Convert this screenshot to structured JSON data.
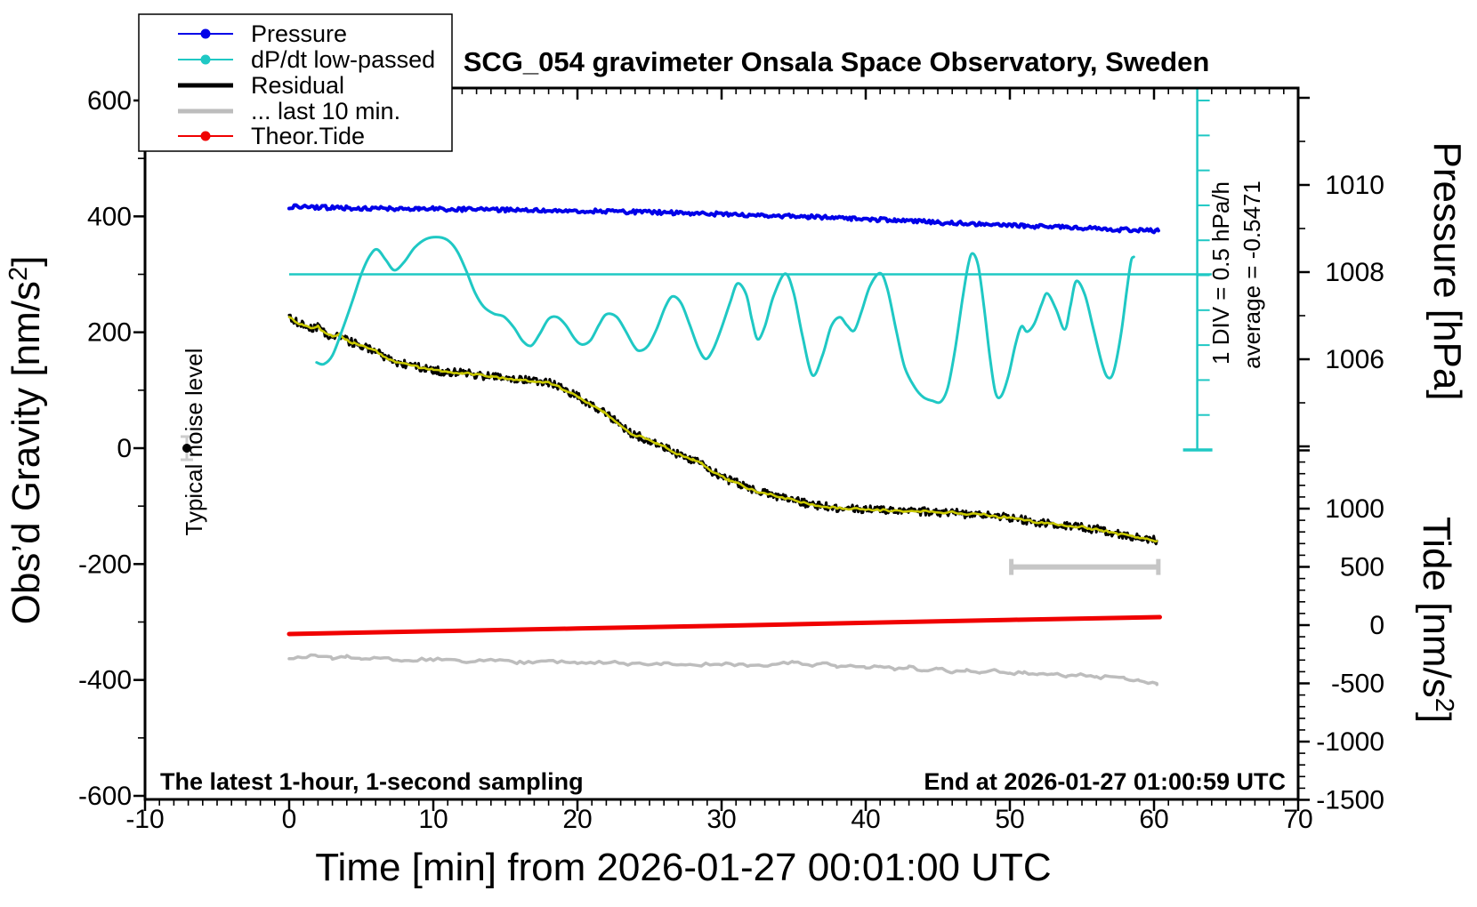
{
  "title": "SCG_054 gravimeter Onsala Space Observatory, Sweden",
  "annotations": {
    "bottom_left": "The latest 1-hour, 1-second sampling",
    "bottom_right": "End at 2026-01-27 01:00:59 UTC",
    "noise_label": "Typical noise level",
    "div_scale_label": "1 DIV = 0.5 hPa/h",
    "average_label": "average = -0.5471"
  },
  "colors": {
    "pressure": "#0000e8",
    "dpdt": "#1fc8c4",
    "residual_raw": "#000000",
    "residual": "#c9c900",
    "last10": "#bdbdbd",
    "tide": "#f00000",
    "marker_gray": "#c6c6c6",
    "frame": "#000000"
  },
  "legend": {
    "items": [
      {
        "label": "Pressure",
        "style": "line-dot",
        "color_key": "pressure"
      },
      {
        "label": "dP/dt low-passed",
        "style": "line-dot",
        "color_key": "dpdt"
      },
      {
        "label": "Residual",
        "style": "thick",
        "color_key": "residual_raw"
      },
      {
        "label": "... last 10 min.",
        "style": "thick",
        "color_key": "last10"
      },
      {
        "label": "Theor.Tide",
        "style": "line-dot",
        "color_key": "tide"
      }
    ]
  },
  "axes": {
    "x": {
      "title": "Time [min] from 2026-01-27 00:01:00 UTC",
      "min": -10,
      "max": 70,
      "major_step": 10,
      "minor_step": 1,
      "labels": [
        -10,
        0,
        10,
        20,
        30,
        40,
        50,
        60,
        70
      ]
    },
    "gravity": {
      "title_pre": "Obs’d Gravity [nm/s",
      "title_sup": "2",
      "title_post": "]",
      "min": -600,
      "max": 600,
      "major_step": 200,
      "minor_step": 100,
      "labels": [
        -600,
        -400,
        -200,
        0,
        200,
        400,
        600
      ]
    },
    "pressure": {
      "title": "Pressure [hPa]",
      "tick_min": 1004,
      "tick_max": 1012,
      "minor_step": 1,
      "major_every": 2,
      "labels": [
        1006,
        1008,
        1010
      ]
    },
    "tide": {
      "title_pre": "Tide [nm/s",
      "title_sup": "2",
      "title_post": "]",
      "tick_min": -1500,
      "tick_max": 1500,
      "minor_step": 100,
      "major_every": 500,
      "labels": [
        -1500,
        -1000,
        -500,
        0,
        500,
        1000
      ]
    }
  },
  "chart_data": {
    "type": "line",
    "title": "SCG_054 gravimeter Onsala Space Observatory, Sweden",
    "x_label": "Time [min] from 2026-01-27 00:01:00 UTC",
    "x_range": [
      -10,
      70
    ],
    "gravity_range": [
      -600,
      600
    ],
    "reference": {
      "dpdt_mean_line_gravity": 300,
      "dpdt_mean_line_x": [
        0,
        64
      ],
      "dpdt_scalebar_x": 63,
      "dpdt_div_gravity_units": 60.3,
      "dpdt_div_count": 10,
      "div_value": "1 DIV = 0.5 hPa/h",
      "average_hpa_per_h": -0.5471
    },
    "series": [
      {
        "name": "Pressure",
        "axis": "pressure",
        "color_key": "pressure",
        "width": 4,
        "noise": 0.045,
        "noise_step": 0.12,
        "seed": 11,
        "points": [
          [
            0,
            1009.5
          ],
          [
            3,
            1009.48
          ],
          [
            6,
            1009.46
          ],
          [
            9,
            1009.46
          ],
          [
            12,
            1009.44
          ],
          [
            15,
            1009.43
          ],
          [
            18,
            1009.42
          ],
          [
            21,
            1009.4
          ],
          [
            24,
            1009.38
          ],
          [
            27,
            1009.36
          ],
          [
            30,
            1009.33
          ],
          [
            33,
            1009.3
          ],
          [
            36,
            1009.27
          ],
          [
            39,
            1009.23
          ],
          [
            42,
            1009.19
          ],
          [
            45,
            1009.14
          ],
          [
            48,
            1009.1
          ],
          [
            51,
            1009.06
          ],
          [
            54,
            1009.02
          ],
          [
            57,
            1008.98
          ],
          [
            60.3,
            1008.95
          ]
        ]
      },
      {
        "name": "dP/dt low-passed",
        "axis": "gravity",
        "color_key": "dpdt",
        "width": 3,
        "smooth": true,
        "points": [
          [
            1.9,
            148
          ],
          [
            2.4,
            145
          ],
          [
            3.0,
            160
          ],
          [
            3.7,
            205
          ],
          [
            4.4,
            255
          ],
          [
            5.0,
            300
          ],
          [
            5.6,
            332
          ],
          [
            6.1,
            343
          ],
          [
            6.7,
            325
          ],
          [
            7.3,
            307
          ],
          [
            8.0,
            322
          ],
          [
            8.7,
            346
          ],
          [
            9.5,
            361
          ],
          [
            10.4,
            364
          ],
          [
            11.1,
            357
          ],
          [
            11.7,
            338
          ],
          [
            12.3,
            305
          ],
          [
            12.9,
            268
          ],
          [
            13.5,
            244
          ],
          [
            14.2,
            232
          ],
          [
            14.9,
            227
          ],
          [
            15.6,
            208
          ],
          [
            16.2,
            185
          ],
          [
            16.8,
            177
          ],
          [
            17.4,
            198
          ],
          [
            18.0,
            223
          ],
          [
            18.6,
            226
          ],
          [
            19.2,
            212
          ],
          [
            19.8,
            189
          ],
          [
            20.3,
            179
          ],
          [
            20.9,
            186
          ],
          [
            21.5,
            213
          ],
          [
            22.0,
            231
          ],
          [
            22.7,
            227
          ],
          [
            23.3,
            204
          ],
          [
            23.9,
            177
          ],
          [
            24.3,
            168
          ],
          [
            24.9,
            177
          ],
          [
            25.5,
            206
          ],
          [
            26.1,
            244
          ],
          [
            26.6,
            262
          ],
          [
            27.2,
            250
          ],
          [
            27.8,
            212
          ],
          [
            28.4,
            172
          ],
          [
            28.9,
            154
          ],
          [
            29.4,
            170
          ],
          [
            30.0,
            208
          ],
          [
            30.6,
            252
          ],
          [
            31.1,
            284
          ],
          [
            31.7,
            266
          ],
          [
            32.1,
            222
          ],
          [
            32.5,
            188
          ],
          [
            33.0,
            210
          ],
          [
            33.6,
            262
          ],
          [
            34.4,
            301
          ],
          [
            35.0,
            268
          ],
          [
            35.6,
            195
          ],
          [
            36.3,
            126
          ],
          [
            37.0,
            160
          ],
          [
            37.6,
            210
          ],
          [
            38.2,
            226
          ],
          [
            38.7,
            212
          ],
          [
            39.2,
            203
          ],
          [
            39.7,
            235
          ],
          [
            40.3,
            280
          ],
          [
            41.0,
            302
          ],
          [
            41.5,
            275
          ],
          [
            42.1,
            205
          ],
          [
            42.7,
            140
          ],
          [
            43.4,
            105
          ],
          [
            44.0,
            88
          ],
          [
            44.6,
            82
          ],
          [
            45.2,
            80
          ],
          [
            45.7,
            105
          ],
          [
            46.2,
            170
          ],
          [
            46.7,
            255
          ],
          [
            47.1,
            315
          ],
          [
            47.4,
            336
          ],
          [
            47.8,
            315
          ],
          [
            48.2,
            245
          ],
          [
            48.6,
            160
          ],
          [
            49.0,
            96
          ],
          [
            49.4,
            90
          ],
          [
            49.9,
            125
          ],
          [
            50.4,
            180
          ],
          [
            50.8,
            210
          ],
          [
            51.2,
            201
          ],
          [
            51.7,
            215
          ],
          [
            52.2,
            248
          ],
          [
            52.6,
            267
          ],
          [
            53.2,
            240
          ],
          [
            53.8,
            205
          ],
          [
            54.2,
            245
          ],
          [
            54.6,
            288
          ],
          [
            55.2,
            265
          ],
          [
            55.8,
            205
          ],
          [
            56.4,
            145
          ],
          [
            56.8,
            122
          ],
          [
            57.2,
            132
          ],
          [
            57.7,
            195
          ],
          [
            58.1,
            270
          ],
          [
            58.4,
            322
          ],
          [
            58.6,
            330
          ]
        ]
      },
      {
        "name": "Residual",
        "axis": "gravity",
        "color_key": "residual",
        "raw_color_key": "residual_raw",
        "raw_width": 3,
        "raw_noise": 7,
        "raw_step": 0.08,
        "width": 2.6,
        "noise": 1.8,
        "noise_step": 0.2,
        "seed": 23,
        "points": [
          [
            0,
            225
          ],
          [
            0.5,
            218
          ],
          [
            1,
            212
          ],
          [
            1.5,
            206
          ],
          [
            2,
            210
          ],
          [
            2.5,
            198
          ],
          [
            3,
            193
          ],
          [
            3.5,
            197
          ],
          [
            4,
            186
          ],
          [
            4.5,
            181
          ],
          [
            5,
            178
          ],
          [
            5.5,
            172
          ],
          [
            6,
            168
          ],
          [
            6.5,
            158
          ],
          [
            7,
            152
          ],
          [
            7.5,
            148
          ],
          [
            8,
            145
          ],
          [
            8.5,
            143
          ],
          [
            9,
            140
          ],
          [
            9.5,
            137
          ],
          [
            10,
            135
          ],
          [
            11,
            131
          ],
          [
            12,
            130
          ],
          [
            13,
            127
          ],
          [
            14,
            123
          ],
          [
            15,
            120
          ],
          [
            16,
            118
          ],
          [
            17,
            116
          ],
          [
            18,
            114
          ],
          [
            18.7,
            106
          ],
          [
            19.3,
            97
          ],
          [
            19.7,
            94
          ],
          [
            20.1,
            88
          ],
          [
            20.6,
            80
          ],
          [
            21.2,
            71
          ],
          [
            21.8,
            62
          ],
          [
            22.4,
            52
          ],
          [
            23,
            38
          ],
          [
            23.7,
            26
          ],
          [
            24.3,
            20
          ],
          [
            24.9,
            14
          ],
          [
            25.5,
            8
          ],
          [
            26.1,
            2
          ],
          [
            26.7,
            -8
          ],
          [
            27.4,
            -14
          ],
          [
            28,
            -20
          ],
          [
            28.6,
            -25
          ],
          [
            29.2,
            -38
          ],
          [
            29.9,
            -48
          ],
          [
            30.5,
            -55
          ],
          [
            31.1,
            -60
          ],
          [
            31.7,
            -68
          ],
          [
            32.4,
            -74
          ],
          [
            33,
            -78
          ],
          [
            33.6,
            -81
          ],
          [
            34.2,
            -85
          ],
          [
            34.9,
            -89
          ],
          [
            35.5,
            -93
          ],
          [
            36.1,
            -97
          ],
          [
            36.7,
            -99
          ],
          [
            37.3,
            -101
          ],
          [
            38,
            -103
          ],
          [
            39,
            -105
          ],
          [
            40,
            -105
          ],
          [
            41,
            -107
          ],
          [
            42,
            -108
          ],
          [
            43,
            -110
          ],
          [
            44,
            -109
          ],
          [
            45,
            -112
          ],
          [
            46,
            -110
          ],
          [
            47,
            -115
          ],
          [
            48,
            -113
          ],
          [
            49,
            -118
          ],
          [
            50,
            -120
          ],
          [
            51,
            -124
          ],
          [
            52,
            -128
          ],
          [
            53,
            -130
          ],
          [
            54,
            -134
          ],
          [
            55,
            -136
          ],
          [
            55.5,
            -140
          ],
          [
            56,
            -138
          ],
          [
            56.5,
            -143
          ],
          [
            57,
            -145
          ],
          [
            57.5,
            -148
          ],
          [
            58,
            -150
          ],
          [
            58.5,
            -152
          ],
          [
            59,
            -154
          ],
          [
            59.5,
            -156
          ],
          [
            60.2,
            -160
          ]
        ]
      },
      {
        "name": "... last 10 min.",
        "axis": "gravity",
        "color_key": "last10",
        "width": 3.5,
        "noise": 2.5,
        "noise_step": 0.3,
        "seed": 37,
        "points": [
          [
            0,
            -362
          ],
          [
            2,
            -358
          ],
          [
            3,
            -363
          ],
          [
            4,
            -360
          ],
          [
            5,
            -365
          ],
          [
            6,
            -362
          ],
          [
            8,
            -366
          ],
          [
            10,
            -364
          ],
          [
            12,
            -368
          ],
          [
            14,
            -366
          ],
          [
            16,
            -370
          ],
          [
            18,
            -368
          ],
          [
            20,
            -371
          ],
          [
            22,
            -369
          ],
          [
            24,
            -373
          ],
          [
            26,
            -371
          ],
          [
            28,
            -374
          ],
          [
            30,
            -372
          ],
          [
            32,
            -376
          ],
          [
            34,
            -373
          ],
          [
            35,
            -369
          ],
          [
            36,
            -376
          ],
          [
            37,
            -371
          ],
          [
            38,
            -378
          ],
          [
            39,
            -373
          ],
          [
            40,
            -380
          ],
          [
            41,
            -375
          ],
          [
            42,
            -382
          ],
          [
            43,
            -377
          ],
          [
            44,
            -384
          ],
          [
            45,
            -379
          ],
          [
            46,
            -386
          ],
          [
            47,
            -382
          ],
          [
            48,
            -388
          ],
          [
            49,
            -384
          ],
          [
            50,
            -390
          ],
          [
            51,
            -386
          ],
          [
            52,
            -392
          ],
          [
            53,
            -389
          ],
          [
            54,
            -394
          ],
          [
            55,
            -391
          ],
          [
            56,
            -396
          ],
          [
            57,
            -394
          ],
          [
            58,
            -398
          ],
          [
            59,
            -402
          ],
          [
            60.2,
            -408
          ]
        ]
      },
      {
        "name": "Theor.Tide",
        "axis": "tide",
        "color_key": "tide",
        "width": 5,
        "points": [
          [
            0,
            -76
          ],
          [
            10,
            -53
          ],
          [
            20,
            -29
          ],
          [
            30,
            -5
          ],
          [
            40,
            20
          ],
          [
            50,
            45
          ],
          [
            60.4,
            69
          ]
        ]
      }
    ],
    "markers": {
      "noise_level": {
        "x": -7.1,
        "gravity": 0,
        "error": 20
      },
      "last10_span": {
        "x1": 50.1,
        "x2": 60.3,
        "gravity": -205
      }
    }
  }
}
